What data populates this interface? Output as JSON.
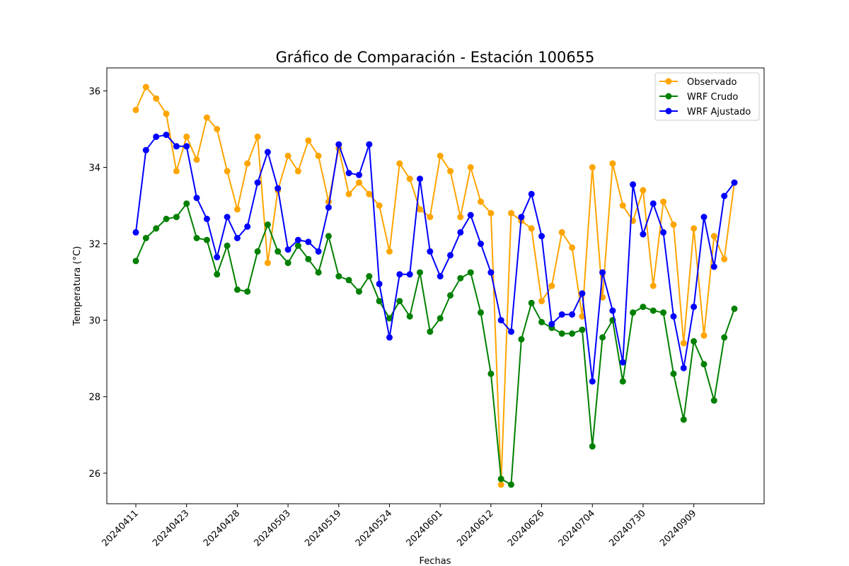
{
  "chart_data": {
    "type": "line",
    "title": "Gráfico de Comparación - Estación 100655",
    "xlabel": "Fechas",
    "ylabel": "Temperatura (°C)",
    "ylim": [
      25.2,
      36.6
    ],
    "yticks": [
      26,
      28,
      30,
      32,
      34,
      36
    ],
    "xtick_labels": [
      "20240411",
      "20240423",
      "20240428",
      "20240503",
      "20240519",
      "20240524",
      "20240601",
      "20240612",
      "20240626",
      "20240704",
      "20240730",
      "20240909"
    ],
    "xtick_step": 5,
    "n_points": 60,
    "legend_position": "upper right",
    "series": [
      {
        "name": "Observado",
        "color": "#ffa500",
        "values": [
          35.5,
          36.1,
          35.8,
          35.4,
          33.9,
          34.8,
          34.2,
          35.3,
          35.0,
          33.9,
          32.9,
          34.1,
          34.8,
          31.5,
          33.4,
          34.3,
          33.9,
          34.7,
          34.3,
          33.1,
          34.5,
          33.3,
          33.6,
          33.3,
          33.0,
          31.8,
          34.1,
          33.7,
          32.9,
          32.7,
          34.3,
          33.9,
          32.7,
          34.0,
          33.1,
          32.8,
          25.7,
          32.8,
          32.6,
          32.4,
          30.5,
          30.9,
          32.3,
          31.9,
          30.1,
          34.0,
          30.6,
          34.1,
          33.0,
          32.6,
          33.4,
          30.9,
          33.1,
          32.5,
          29.4,
          32.4,
          29.6,
          32.2,
          31.6,
          33.6
        ]
      },
      {
        "name": "WRF Crudo",
        "color": "#008000",
        "values": [
          31.55,
          32.15,
          32.4,
          32.65,
          32.7,
          33.05,
          32.15,
          32.1,
          31.2,
          31.95,
          30.8,
          30.75,
          31.8,
          32.5,
          31.8,
          31.5,
          31.95,
          31.6,
          31.25,
          32.2,
          31.15,
          31.05,
          30.75,
          31.15,
          30.5,
          30.05,
          30.5,
          30.1,
          31.25,
          29.7,
          30.05,
          30.65,
          31.1,
          31.25,
          30.2,
          28.6,
          25.85,
          25.7,
          29.5,
          30.45,
          29.95,
          29.8,
          29.65,
          29.65,
          29.75,
          26.7,
          29.55,
          30.0,
          28.4,
          30.2,
          30.35,
          30.25,
          30.2,
          28.6,
          27.4,
          29.45,
          28.85,
          27.9,
          29.55,
          30.3
        ]
      },
      {
        "name": "WRF Ajustado",
        "color": "#0000ff",
        "values": [
          32.3,
          34.45,
          34.8,
          34.85,
          34.55,
          34.55,
          33.2,
          32.65,
          31.65,
          32.7,
          32.15,
          32.45,
          33.6,
          34.4,
          33.45,
          31.85,
          32.1,
          32.05,
          31.8,
          32.95,
          34.6,
          33.85,
          33.8,
          34.6,
          30.95,
          29.55,
          31.2,
          31.2,
          33.7,
          31.8,
          31.15,
          31.7,
          32.3,
          32.75,
          32.0,
          31.25,
          30.0,
          29.7,
          32.7,
          33.3,
          32.2,
          29.9,
          30.15,
          30.15,
          30.7,
          28.4,
          31.25,
          30.25,
          28.9,
          33.55,
          32.25,
          33.05,
          32.3,
          30.1,
          28.75,
          30.35,
          32.7,
          31.4,
          33.25,
          33.6
        ]
      }
    ]
  }
}
